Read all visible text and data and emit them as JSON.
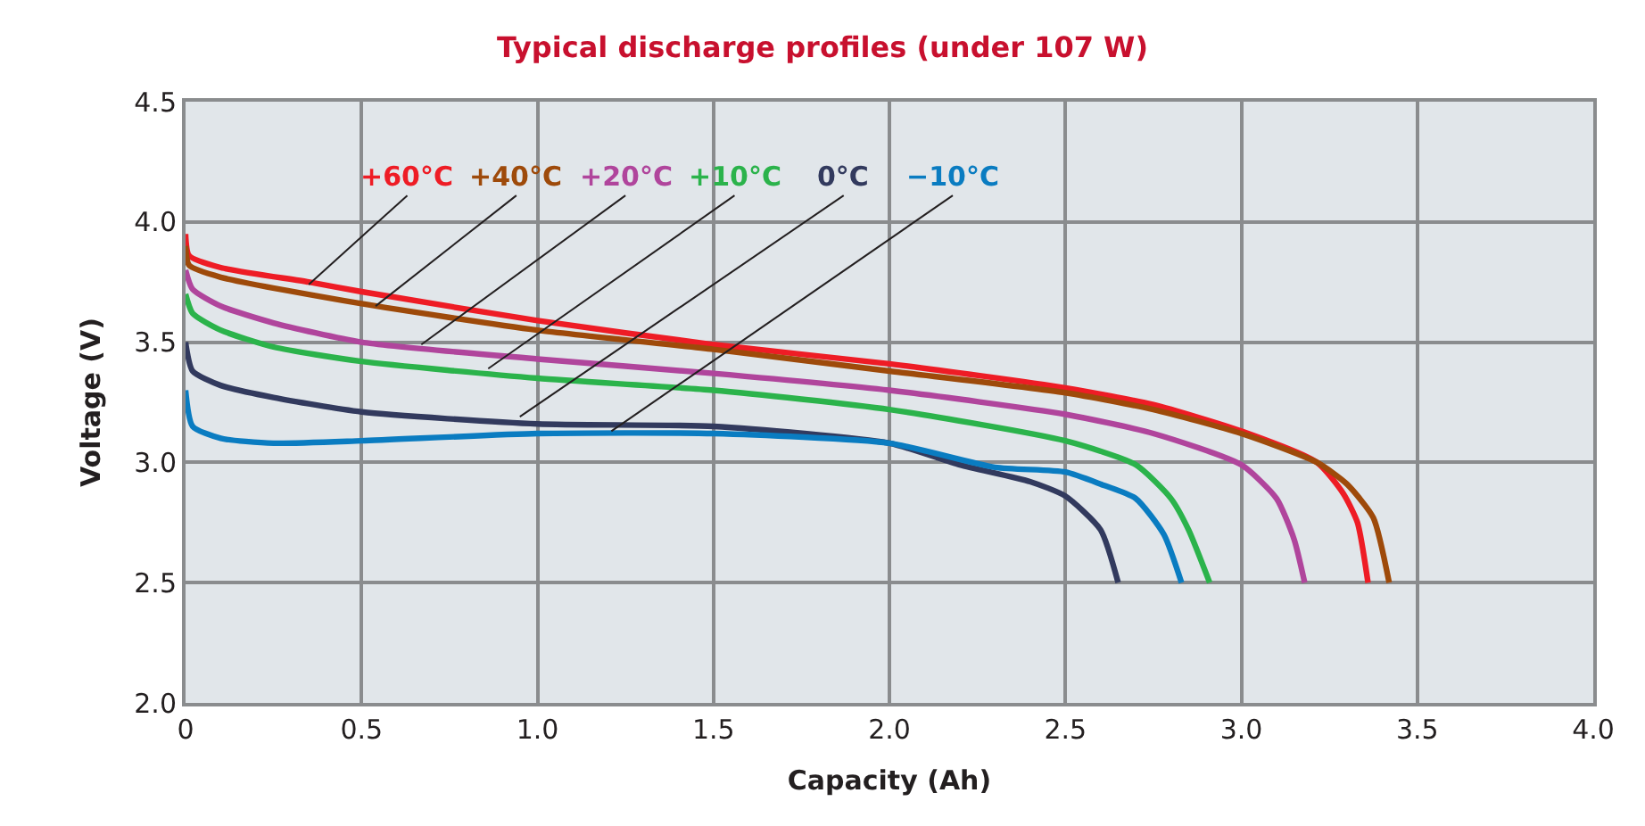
{
  "chart_data": {
    "type": "line",
    "title": "Typical discharge profiles (under 107 W)",
    "xlabel": "Capacity (Ah)",
    "ylabel": "Voltage (V)",
    "xlim": [
      0,
      4
    ],
    "xticks": [
      0,
      0.5,
      {
        "value": 1,
        "label": "1.0"
      },
      1.5,
      {
        "value": 2,
        "label": "2.0"
      },
      2.5,
      {
        "value": 3,
        "label": "3.0"
      },
      3.5,
      {
        "value": 4,
        "label": "4.0"
      }
    ],
    "ylim": [
      2,
      4.5
    ],
    "yticks": [
      {
        "value": 2,
        "label": "2.0"
      },
      2.5,
      {
        "value": 3,
        "label": "3.0"
      },
      3.5,
      {
        "value": 4,
        "label": "4.0"
      },
      4.5
    ],
    "grid": true,
    "marker": "none",
    "line_style": "solid",
    "series": [
      {
        "color": "#ee1c25",
        "x": [
          0,
          0.01,
          0.1,
          0.35,
          0.5,
          1.0,
          1.5,
          2.0,
          2.5,
          2.75,
          3.0,
          3.215,
          3.29,
          3.33,
          3.36
        ],
        "values": [
          3.95,
          3.86,
          3.81,
          3.75,
          3.71,
          3.59,
          3.49,
          3.41,
          3.31,
          3.24,
          3.13,
          3.0,
          2.87,
          2.75,
          2.5
        ]
      },
      {
        "color": "#9e4a0a",
        "x": [
          0,
          0.01,
          0.1,
          0.5,
          1.0,
          1.5,
          2.0,
          2.5,
          2.75,
          3.0,
          3.215,
          3.3,
          3.375,
          3.42
        ],
        "values": [
          3.9,
          3.82,
          3.77,
          3.66,
          3.55,
          3.47,
          3.38,
          3.29,
          3.22,
          3.12,
          3.0,
          2.91,
          2.77,
          2.5
        ]
      },
      {
        "color": "#b0459c",
        "x": [
          0,
          0.02,
          0.1,
          0.25,
          0.5,
          1.0,
          1.5,
          2.0,
          2.5,
          2.75,
          3.0,
          3.1,
          3.15,
          3.18
        ],
        "values": [
          3.8,
          3.72,
          3.65,
          3.58,
          3.5,
          3.43,
          3.37,
          3.3,
          3.2,
          3.12,
          2.99,
          2.85,
          2.68,
          2.5
        ]
      },
      {
        "color": "#2bb34b",
        "x": [
          0,
          0.02,
          0.1,
          0.25,
          0.5,
          1.0,
          1.5,
          2.0,
          2.5,
          2.7,
          2.8,
          2.85,
          2.91
        ],
        "values": [
          3.7,
          3.62,
          3.55,
          3.48,
          3.42,
          3.35,
          3.3,
          3.22,
          3.09,
          2.99,
          2.85,
          2.72,
          2.5
        ]
      },
      {
        "color": "#323a5e",
        "x": [
          0,
          0.02,
          0.1,
          0.25,
          0.5,
          1.0,
          1.5,
          2.0,
          2.2,
          2.4,
          2.5,
          2.6,
          2.65
        ],
        "values": [
          3.5,
          3.38,
          3.32,
          3.27,
          3.21,
          3.16,
          3.15,
          3.08,
          2.99,
          2.92,
          2.86,
          2.72,
          2.5
        ]
      },
      {
        "color": "#0a7cc1",
        "x": [
          0,
          0.02,
          0.1,
          0.25,
          0.5,
          1.0,
          1.5,
          2.0,
          2.3,
          2.5,
          2.6,
          2.7,
          2.78,
          2.83
        ],
        "values": [
          3.3,
          3.15,
          3.1,
          3.08,
          3.09,
          3.12,
          3.12,
          3.08,
          2.98,
          2.96,
          2.91,
          2.85,
          2.7,
          2.5
        ]
      }
    ],
    "annotations": [
      {
        "text": "+60°C",
        "x": 0.35,
        "y": 3.74
      },
      {
        "text": "+40°C",
        "x": 0.54,
        "y": 3.65
      },
      {
        "text": "+20°C",
        "x": 0.67,
        "y": 3.49
      },
      {
        "text": "+10°C",
        "x": 0.86,
        "y": 3.39
      },
      {
        "text": "0°C",
        "x": 0.95,
        "y": 3.19
      },
      {
        "text": "−10°C",
        "x": 1.21,
        "y": 3.13
      }
    ]
  }
}
